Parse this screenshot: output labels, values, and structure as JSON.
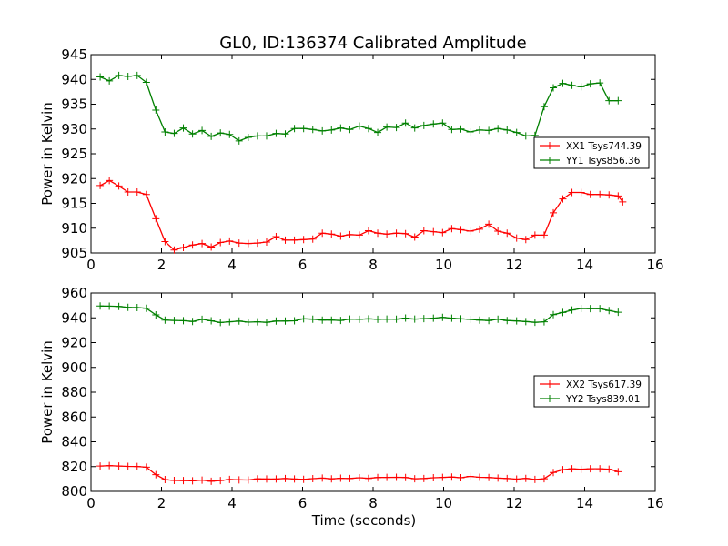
{
  "figure": {
    "title": "GL0, ID:136374 Calibrated Amplitude"
  },
  "colors": {
    "series_red": "#ff0000",
    "series_green": "#008000"
  },
  "chart_data": [
    {
      "type": "line",
      "title": "GL0, ID:136374 Calibrated Amplitude",
      "xlabel": "",
      "ylabel": "Power in Kelvin",
      "xlim": [
        0,
        16
      ],
      "ylim": [
        905,
        945
      ],
      "xticks": [
        0,
        2,
        4,
        6,
        8,
        10,
        12,
        14,
        16
      ],
      "yticks": [
        905,
        910,
        915,
        920,
        925,
        930,
        935,
        940,
        945
      ],
      "grid": false,
      "legend_position": "right",
      "marker": "+",
      "x": [
        0.26,
        0.52,
        0.79,
        1.05,
        1.31,
        1.57,
        1.84,
        2.1,
        2.36,
        2.62,
        2.88,
        3.15,
        3.41,
        3.67,
        3.93,
        4.2,
        4.46,
        4.72,
        4.98,
        5.25,
        5.51,
        5.77,
        6.03,
        6.29,
        6.56,
        6.82,
        7.08,
        7.34,
        7.61,
        7.87,
        8.13,
        8.39,
        8.66,
        8.92,
        9.18,
        9.44,
        9.71,
        9.97,
        10.23,
        10.49,
        10.75,
        11.02,
        11.28,
        11.54,
        11.8,
        12.07,
        12.33,
        12.59,
        12.85,
        13.11,
        13.38,
        13.64,
        13.9,
        14.16,
        14.43,
        14.69,
        14.95
      ],
      "series": [
        {
          "name": "XX1 Tsys744.39",
          "color": "#ff0000",
          "x": [
            0.26,
            0.52,
            0.79,
            1.05,
            1.31,
            1.57,
            1.84,
            2.1,
            2.36,
            2.62,
            2.88,
            3.15,
            3.41,
            3.67,
            3.93,
            4.2,
            4.46,
            4.72,
            4.98,
            5.25,
            5.51,
            5.77,
            6.03,
            6.29,
            6.56,
            6.82,
            7.08,
            7.34,
            7.61,
            7.87,
            8.13,
            8.39,
            8.66,
            8.92,
            9.18,
            9.44,
            9.71,
            9.97,
            10.23,
            10.49,
            10.75,
            11.02,
            11.28,
            11.54,
            11.8,
            12.07,
            12.33,
            12.59,
            12.85,
            13.11,
            13.38,
            13.64,
            13.9,
            14.16,
            14.43,
            14.69,
            14.95,
            15.08
          ],
          "values": [
            918.6,
            919.6,
            918.5,
            917.3,
            917.3,
            916.8,
            911.9,
            907.3,
            905.6,
            906.1,
            906.6,
            906.9,
            906.2,
            907.1,
            907.4,
            907.0,
            906.9,
            907.0,
            907.2,
            908.3,
            907.6,
            907.6,
            907.7,
            907.8,
            909.0,
            908.8,
            908.4,
            908.7,
            908.6,
            909.5,
            909.0,
            908.8,
            909.0,
            908.9,
            908.2,
            909.5,
            909.3,
            909.1,
            909.9,
            909.7,
            909.4,
            909.8,
            910.8,
            909.4,
            909.0,
            908.0,
            907.7,
            908.6,
            908.6,
            913.1,
            915.9,
            917.2,
            917.2,
            916.8,
            916.8,
            916.7,
            916.5,
            915.3
          ]
        },
        {
          "name": "YY1 Tsys856.36",
          "color": "#008000",
          "x": [
            0.26,
            0.52,
            0.79,
            1.05,
            1.31,
            1.57,
            1.84,
            2.1,
            2.36,
            2.62,
            2.88,
            3.15,
            3.41,
            3.67,
            3.93,
            4.2,
            4.46,
            4.72,
            4.98,
            5.25,
            5.51,
            5.77,
            6.03,
            6.29,
            6.56,
            6.82,
            7.08,
            7.34,
            7.61,
            7.87,
            8.13,
            8.39,
            8.66,
            8.92,
            9.18,
            9.44,
            9.71,
            9.97,
            10.23,
            10.49,
            10.75,
            11.02,
            11.28,
            11.54,
            11.8,
            12.07,
            12.33,
            12.59,
            12.85,
            13.11,
            13.38,
            13.64,
            13.9,
            14.16,
            14.43,
            14.69,
            14.95
          ],
          "values": [
            940.5,
            939.7,
            940.8,
            940.6,
            940.8,
            939.4,
            933.8,
            929.4,
            929.1,
            930.2,
            929.0,
            929.7,
            928.5,
            929.2,
            928.9,
            927.6,
            928.3,
            928.6,
            928.6,
            929.1,
            929.0,
            930.1,
            930.1,
            929.9,
            929.6,
            929.8,
            930.2,
            929.9,
            930.6,
            930.1,
            929.3,
            930.4,
            930.3,
            931.2,
            930.2,
            930.7,
            931.0,
            931.2,
            929.9,
            930.0,
            929.4,
            929.8,
            929.7,
            930.1,
            929.8,
            929.3,
            928.6,
            928.7,
            934.5,
            938.3,
            939.2,
            938.8,
            938.5,
            939.1,
            939.3,
            935.7,
            935.7
          ]
        }
      ]
    },
    {
      "type": "line",
      "title": "",
      "xlabel": "Time (seconds)",
      "ylabel": "Power in Kelvin",
      "xlim": [
        0,
        16
      ],
      "ylim": [
        800,
        960
      ],
      "xticks": [
        0,
        2,
        4,
        6,
        8,
        10,
        12,
        14,
        16
      ],
      "yticks": [
        800,
        820,
        840,
        860,
        880,
        900,
        920,
        940,
        960
      ],
      "grid": false,
      "legend_position": "right",
      "marker": "+",
      "x": [
        0.26,
        0.52,
        0.79,
        1.05,
        1.31,
        1.57,
        1.84,
        2.1,
        2.36,
        2.62,
        2.88,
        3.15,
        3.41,
        3.67,
        3.93,
        4.2,
        4.46,
        4.72,
        4.98,
        5.25,
        5.51,
        5.77,
        6.03,
        6.29,
        6.56,
        6.82,
        7.08,
        7.34,
        7.61,
        7.87,
        8.13,
        8.39,
        8.66,
        8.92,
        9.18,
        9.44,
        9.71,
        9.97,
        10.23,
        10.49,
        10.75,
        11.02,
        11.28,
        11.54,
        11.8,
        12.07,
        12.33,
        12.59,
        12.85,
        13.11,
        13.38,
        13.64,
        13.9,
        14.16,
        14.43,
        14.69,
        14.95
      ],
      "series": [
        {
          "name": "XX2 Tsys617.39",
          "color": "#ff0000",
          "values": [
            820.5,
            820.8,
            820.5,
            820.2,
            820.1,
            819.5,
            813.5,
            809.5,
            808.8,
            808.7,
            808.5,
            809.1,
            808.2,
            808.7,
            809.6,
            809.3,
            809.2,
            810.1,
            810.0,
            810.0,
            810.4,
            810.0,
            809.7,
            810.3,
            810.7,
            810.1,
            810.6,
            810.4,
            811.0,
            810.5,
            811.2,
            811.3,
            811.4,
            811.2,
            810.2,
            810.4,
            811.0,
            811.3,
            811.6,
            811.0,
            812.1,
            811.4,
            811.2,
            810.7,
            810.4,
            809.9,
            810.5,
            809.6,
            810.2,
            815.2,
            817.5,
            818.3,
            817.8,
            818.3,
            818.3,
            817.9,
            815.9
          ]
        },
        {
          "name": "YY2 Tsys839.01",
          "color": "#008000",
          "values": [
            949.5,
            949.4,
            949.2,
            948.4,
            948.3,
            947.7,
            942.4,
            938.2,
            937.9,
            937.7,
            937.1,
            938.8,
            937.6,
            936.2,
            936.8,
            937.4,
            936.5,
            936.8,
            936.4,
            937.4,
            937.4,
            937.6,
            939.2,
            938.9,
            938.2,
            938.2,
            937.9,
            939.0,
            938.8,
            939.2,
            938.8,
            939.0,
            938.9,
            939.8,
            939.0,
            939.4,
            939.7,
            940.4,
            939.7,
            939.2,
            938.7,
            938.2,
            937.8,
            938.9,
            937.8,
            937.5,
            937.0,
            936.4,
            936.8,
            942.6,
            944.3,
            946.3,
            947.5,
            947.4,
            947.4,
            945.9,
            944.5
          ]
        }
      ]
    }
  ]
}
